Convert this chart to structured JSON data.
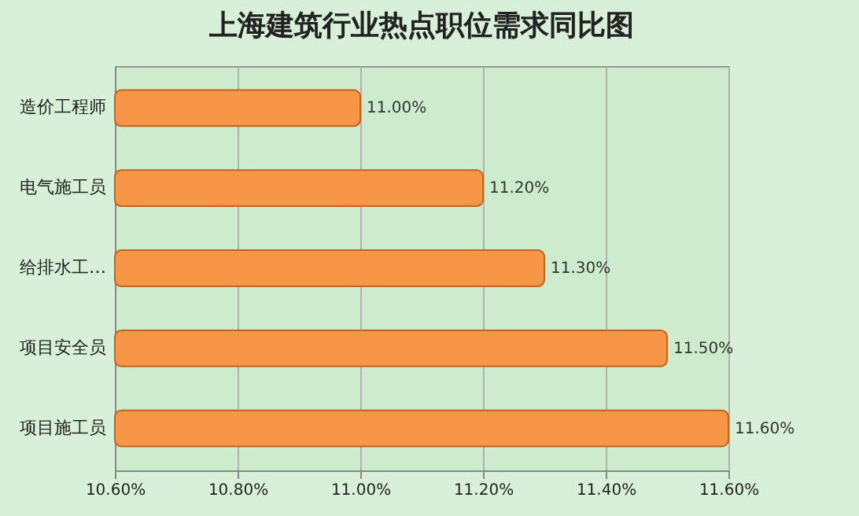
{
  "chart_data": {
    "type": "bar",
    "orientation": "horizontal",
    "title": "上海建筑行业热点职位需求同比图",
    "categories": [
      "造价工程师",
      "电气施工员",
      "给排水工…",
      "项目安全员",
      "项目施工员"
    ],
    "values": [
      11.0,
      11.2,
      11.3,
      11.5,
      11.6
    ],
    "value_labels": [
      "11.00%",
      "11.20%",
      "11.30%",
      "11.50%",
      "11.60%"
    ],
    "color": "#f79646",
    "xlim": [
      10.6,
      11.6
    ],
    "xticks": [
      {
        "value": 10.6,
        "label": "10.60%"
      },
      {
        "value": 10.8,
        "label": "10.80%"
      },
      {
        "value": 11.0,
        "label": "11.00%"
      },
      {
        "value": 11.2,
        "label": "11.20%"
      },
      {
        "value": 11.4,
        "label": "11.40%"
      },
      {
        "value": 11.6,
        "label": "11.60%"
      }
    ],
    "grid": "x"
  }
}
